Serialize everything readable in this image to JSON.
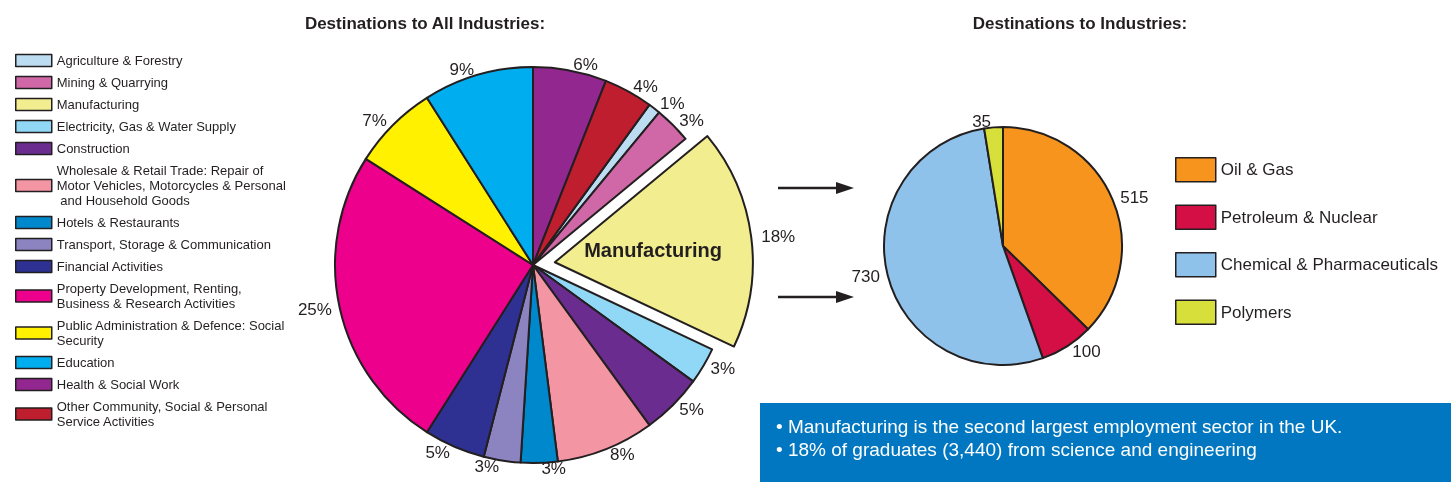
{
  "chart_data": [
    {
      "type": "pie",
      "title": "Destinations to All Industries:",
      "categories": [
        "Agriculture & Forestry",
        "Mining & Quarrying",
        "Manufacturing",
        "Electricity, Gas & Water Supply",
        "Construction",
        "Wholesale & Retail Trade: Repair of Motor Vehicles, Motorcycles & Personal and Household Goods",
        "Hotels & Restaurants",
        "Transport, Storage & Communication",
        "Financial Activities",
        "Property Development, Renting, Business & Research Activities",
        "Public Administration & Defence: Social Security",
        "Education",
        "Health & Social Work",
        "Other Community, Social & Personal Service Activities"
      ],
      "values": [
        1,
        3,
        18,
        3,
        5,
        8,
        3,
        3,
        5,
        25,
        7,
        9,
        6,
        4
      ],
      "colors": [
        "#bcdcf2",
        "#d068a8",
        "#f2ee90",
        "#90d8f5",
        "#6a2d8f",
        "#f395a3",
        "#0088cc",
        "#8b84c0",
        "#2e3192",
        "#ec008c",
        "#fff100",
        "#00aeef",
        "#92278f",
        "#be1e2d"
      ],
      "value_labels": [
        "1%",
        "3%",
        "18%",
        "3%",
        "5%",
        "8%",
        "3%",
        "3%",
        "5%",
        "25%",
        "7%",
        "9%",
        "6%",
        "4%"
      ],
      "legend": "left",
      "annotations": [
        {
          "text": "Manufacturing",
          "x": "Manufacturing"
        }
      ]
    },
    {
      "type": "pie",
      "title": "Destinations to Industries:",
      "categories": [
        "Oil & Gas",
        "Petroleum & Nuclear",
        "Chemical & Pharmaceuticals",
        "Polymers"
      ],
      "values": [
        515,
        100,
        730,
        35
      ],
      "colors": [
        "#f7941d",
        "#d40f45",
        "#8fc2ea",
        "#d7df3a"
      ],
      "data_labels": true,
      "legend": "right",
      "annotations": [
        "• Manufacturing is the second largest employment sector in the UK.",
        "• 18% of graduates (3,440) from science and engineering"
      ]
    }
  ]
}
